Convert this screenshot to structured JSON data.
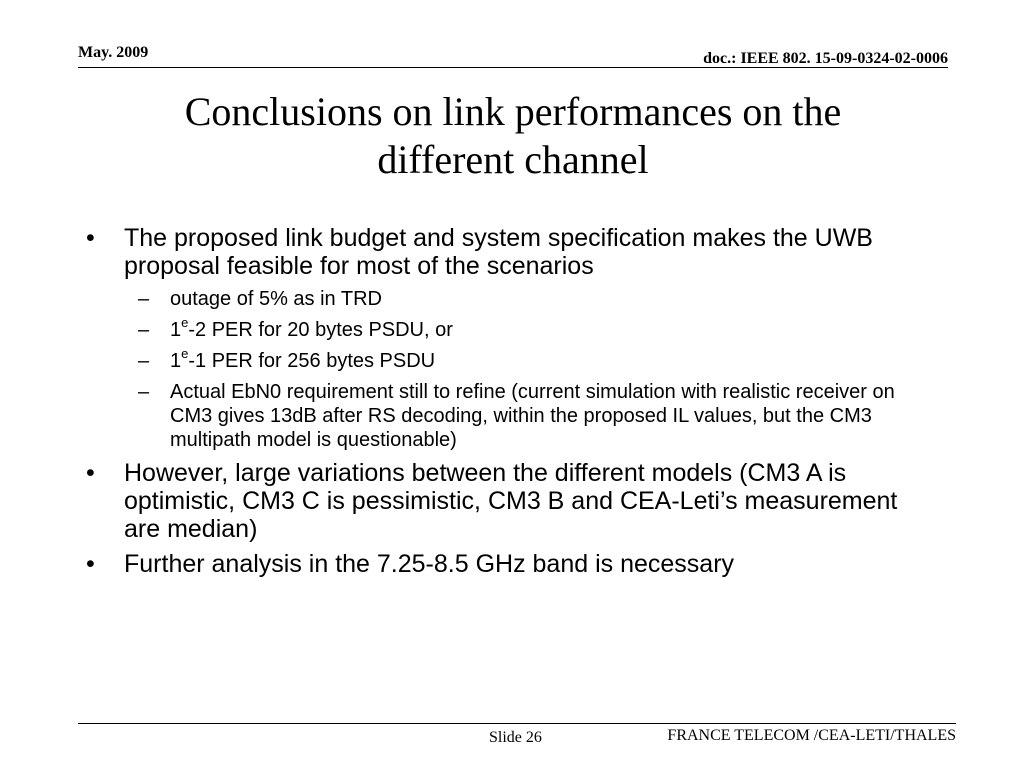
{
  "header": {
    "date": "May. 2009",
    "doc": "doc.: IEEE 802. 15-09-0324-02-0006"
  },
  "title": {
    "line1": "Conclusions on link performances on the",
    "line2": "different channel"
  },
  "bullets": {
    "b1": "The proposed link budget and system specification makes the UWB proposal feasible for most of the scenarios",
    "s1": "outage of 5% as in TRD",
    "s2_pre": "1",
    "s2_sup": "e",
    "s2_post": "-2  PER for 20 bytes PSDU, or",
    "s3_pre": "1",
    "s3_sup": "e",
    "s3_post": "-1 PER for 256 bytes PSDU",
    "s4": "Actual EbN0 requirement still to refine (current simulation with realistic receiver on CM3 gives 13dB after RS decoding, within the proposed IL values, but the CM3 multipath model is questionable)",
    "b2": "However, large variations between the different models (CM3 A is optimistic, CM3 C is pessimistic, CM3 B and CEA-Leti’s measurement are median)",
    "b3": "Further analysis in the 7.25-8.5 GHz band is necessary",
    "bullet_char": "•",
    "dash_char": "–"
  },
  "footer": {
    "slide": "Slide 26",
    "org": "FRANCE TELECOM /CEA-LETI/THALES"
  }
}
